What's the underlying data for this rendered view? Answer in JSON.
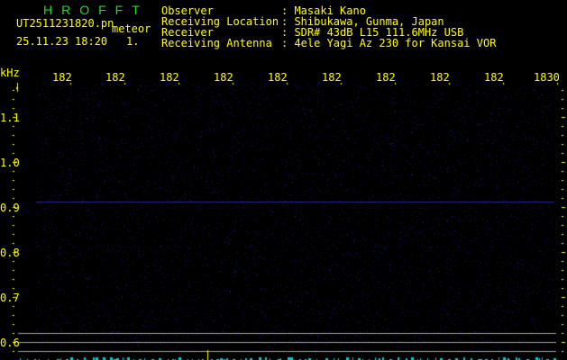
{
  "brand": "HROFFT",
  "file_name": "UT2511231820.pn",
  "mode": "meteor",
  "timestamp": "25.11.23 18:20",
  "count": "1.",
  "info": [
    {
      "label": "Observer",
      "value": "Masaki Kano"
    },
    {
      "label": "Receiving Location",
      "value": "Shibukawa, Gunma, Japan"
    },
    {
      "label": "Receiver",
      "value": "SDR# 43dB L15 111.6MHz USB"
    },
    {
      "label": "Receiving Antenna",
      "value": "4ele Yagi Az 230 for Kansai VOR"
    }
  ],
  "y_unit": "kHz",
  "x_labels": [
    "182",
    "182",
    "182",
    "182",
    "182",
    "182",
    "182",
    "182",
    "182",
    "1830"
  ],
  "y_labels": [
    "1.1",
    "1.0",
    "0.9",
    "0.8",
    "0.7",
    "0.6"
  ],
  "colors": {
    "text": "#ffff00",
    "brand": "#22dd22",
    "noise": "#1a1aa0",
    "marker": "#00cccc",
    "guide": "#a0a0a0"
  }
}
